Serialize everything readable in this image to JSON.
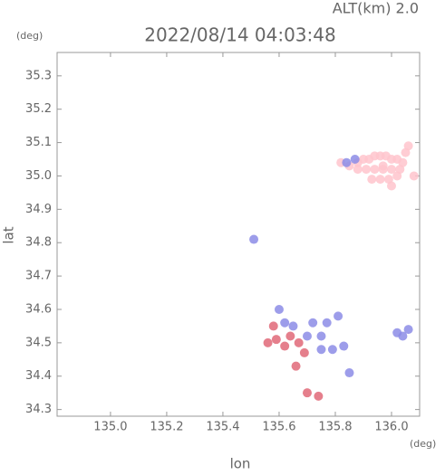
{
  "alt_label": "ALT(km) 2.0",
  "top_unit": "(deg)",
  "chart_data": {
    "type": "scatter",
    "title": "2022/08/14 04:03:48",
    "x_label": "lon",
    "y_label": "lat",
    "x_unit": "(deg)",
    "xlim": [
      134.81,
      136.1
    ],
    "ylim": [
      34.28,
      35.37
    ],
    "xticks": [
      {
        "value": 135,
        "label": "135.0"
      },
      135.2,
      135.4,
      135.6,
      135.8,
      {
        "value": 136,
        "label": "136.0"
      }
    ],
    "yticks": [
      34.3,
      34.4,
      34.5,
      34.6,
      34.7,
      34.8,
      34.9,
      {
        "value": 35,
        "label": "35.0"
      },
      35.1,
      35.2,
      35.3
    ],
    "series": [
      {
        "color": "#ffc4cc",
        "x": [
          135.82,
          135.85,
          135.88,
          135.9,
          135.92,
          135.94,
          135.96,
          135.98,
          136.0,
          136.02,
          136.04,
          135.88,
          135.91,
          135.94,
          135.97,
          136.0,
          136.03,
          135.93,
          135.96,
          135.99,
          136.02,
          136.0,
          136.06,
          136.08,
          135.97,
          136.05
        ],
        "y": [
          35.04,
          35.03,
          35.04,
          35.05,
          35.05,
          35.06,
          35.06,
          35.06,
          35.05,
          35.05,
          35.04,
          35.02,
          35.02,
          35.02,
          35.02,
          35.02,
          35.02,
          34.99,
          34.99,
          34.99,
          35.0,
          34.97,
          35.09,
          35.0,
          35.03,
          35.07
        ]
      },
      {
        "color": "#e06878",
        "x": [
          135.56,
          135.59,
          135.62,
          135.64,
          135.67,
          135.69,
          135.66,
          135.74,
          135.7,
          135.58
        ],
        "y": [
          34.5,
          34.51,
          34.49,
          34.52,
          34.5,
          34.47,
          34.43,
          34.34,
          34.35,
          34.55
        ]
      },
      {
        "color": "#8c8ce6",
        "x": [
          135.6,
          135.62,
          135.65,
          135.7,
          135.75,
          135.77,
          135.79,
          135.83,
          135.81,
          135.85,
          136.02,
          136.04,
          136.06,
          135.84,
          135.87,
          135.51,
          135.72,
          135.75
        ],
        "y": [
          34.6,
          34.56,
          34.55,
          34.52,
          34.52,
          34.56,
          34.48,
          34.49,
          34.58,
          34.41,
          34.53,
          34.52,
          34.54,
          35.04,
          35.05,
          34.81,
          34.56,
          34.48
        ]
      }
    ]
  }
}
